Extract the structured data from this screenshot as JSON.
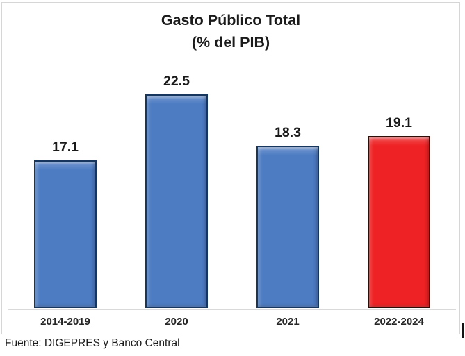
{
  "chart_data": {
    "type": "bar",
    "title": "Gasto Público Total",
    "subtitle": "(% del PIB)",
    "categories": [
      "2014-2019",
      "2020",
      "2021",
      "2022-2024"
    ],
    "values": [
      17.1,
      22.5,
      18.3,
      19.1
    ],
    "value_labels": [
      "17.1",
      "22.5",
      "18.3",
      "19.1"
    ],
    "bar_fill_colors": [
      "#4d7cc3",
      "#4d7cc3",
      "#4d7cc3",
      "#ee2224"
    ],
    "bar_border_colors": [
      "#17365d",
      "#17365d",
      "#17365d",
      "#2d0d08"
    ],
    "ylim": [
      5,
      30
    ],
    "grid": false,
    "legend": "none",
    "xlabel": "",
    "ylabel": ""
  },
  "source_note": "Fuente: DIGEPRES y Banco Central",
  "colors": {
    "chart_border": "#d6d6d6",
    "axis_line": "#d9d9d9",
    "text": "#1a1a1a",
    "background": "#ffffff"
  }
}
